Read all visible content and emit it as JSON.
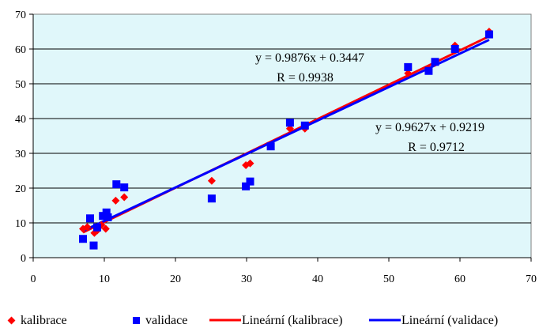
{
  "chart_data": {
    "type": "scatter",
    "xlim": [
      0,
      70
    ],
    "ylim": [
      0,
      70
    ],
    "x_ticks": [
      "0",
      "10",
      "20",
      "30",
      "40",
      "50",
      "60",
      "70"
    ],
    "y_ticks": [
      "0",
      "10",
      "20",
      "30",
      "40",
      "50",
      "60",
      "70"
    ],
    "grid": "horizontal",
    "plot_background": "#E0F7FA",
    "legend_position": "bottom",
    "series": [
      {
        "name": "kalibrace",
        "marker": "diamond",
        "color": "#FF0000",
        "points": [
          [
            7.0,
            8.3
          ],
          [
            7.6,
            8.8
          ],
          [
            8.6,
            7.1
          ],
          [
            9.0,
            7.8
          ],
          [
            9.6,
            9.4
          ],
          [
            10.2,
            8.3
          ],
          [
            11.6,
            16.4
          ],
          [
            12.8,
            17.4
          ],
          [
            25.1,
            22.1
          ],
          [
            29.9,
            26.6
          ],
          [
            30.5,
            27.1
          ],
          [
            36.1,
            37.1
          ],
          [
            38.2,
            37.1
          ],
          [
            52.7,
            53.0
          ],
          [
            55.6,
            54.2
          ],
          [
            56.5,
            56.0
          ],
          [
            59.3,
            61.0
          ],
          [
            64.1,
            65.0
          ]
        ]
      },
      {
        "name": "validace",
        "marker": "square",
        "color": "#0000FF",
        "points": [
          [
            7.0,
            5.4
          ],
          [
            8.0,
            11.3
          ],
          [
            8.5,
            3.5
          ],
          [
            9.0,
            8.7
          ],
          [
            9.8,
            12.0
          ],
          [
            10.3,
            13.0
          ],
          [
            10.5,
            11.6
          ],
          [
            11.7,
            21.1
          ],
          [
            12.8,
            20.2
          ],
          [
            25.1,
            17.0
          ],
          [
            29.9,
            20.5
          ],
          [
            30.5,
            21.9
          ],
          [
            33.4,
            32.0
          ],
          [
            36.1,
            38.8
          ],
          [
            38.2,
            38.0
          ],
          [
            52.7,
            54.8
          ],
          [
            55.6,
            53.7
          ],
          [
            56.5,
            56.3
          ],
          [
            59.3,
            60.0
          ],
          [
            64.1,
            64.2
          ]
        ]
      }
    ],
    "trendlines": [
      {
        "name": "Lineární (kalibrace)",
        "color": "#FF0000",
        "slope": 0.9876,
        "intercept": 0.3447,
        "x_range": [
          7.0,
          64.1
        ],
        "equation": "y = 0.9876x + 0.3447",
        "r_label": "R = 0.9938"
      },
      {
        "name": "Lineární (validace)",
        "color": "#0000FF",
        "slope": 0.9627,
        "intercept": 0.9219,
        "x_range": [
          7.0,
          64.1
        ],
        "equation": "y = 0.9627x + 0.9219",
        "r_label": "R = 0.9712"
      }
    ]
  }
}
